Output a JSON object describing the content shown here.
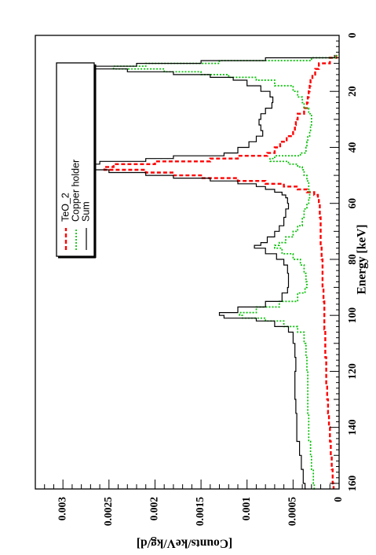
{
  "chart_data": {
    "type": "line",
    "orientation": "rotated-90-clockwise",
    "xlabel": "Energy [keV]",
    "ylabel": "[Counts/keV/kg/d]",
    "xlim": [
      0,
      162
    ],
    "ylim": [
      0,
      0.0033
    ],
    "x_ticks": [
      "0",
      "20",
      "40",
      "60",
      "80",
      "100",
      "120",
      "140",
      "160"
    ],
    "y_ticks": [
      "0",
      "0.0005",
      "0.001",
      "0.0015",
      "0.002",
      "0.0025",
      "0.003"
    ],
    "legend_position": "top-right",
    "series": [
      {
        "name": "TeO_2",
        "color": "#ff0000",
        "style": "dashed",
        "x": [
          7,
          8,
          10,
          12,
          14,
          16,
          18,
          20,
          22,
          24,
          26,
          28,
          30,
          32,
          34,
          36,
          38,
          40,
          42,
          43,
          44,
          45,
          46,
          47,
          48,
          49,
          50,
          51,
          52,
          53,
          54,
          55,
          56,
          57,
          58,
          60,
          62,
          65,
          70,
          75,
          80,
          85,
          90,
          95,
          100,
          105,
          110,
          115,
          120,
          125,
          130,
          135,
          140,
          145,
          150,
          155,
          160,
          162
        ],
        "values": [
          3e-05,
          0.0001,
          0.00022,
          0.00026,
          0.00029,
          0.00031,
          0.00032,
          0.00033,
          0.00034,
          0.00035,
          0.00038,
          0.00045,
          0.00047,
          0.00048,
          0.0005,
          0.00057,
          0.00064,
          0.0007,
          0.00078,
          0.0011,
          0.0014,
          0.002,
          0.00245,
          0.00255,
          0.0021,
          0.0018,
          0.0015,
          0.0011,
          0.0008,
          0.0006,
          0.00045,
          0.00035,
          0.00027,
          0.00023,
          0.00022,
          0.00021,
          0.00021,
          0.0002,
          0.0002,
          0.00019,
          0.00018,
          0.00018,
          0.00017,
          0.00016,
          0.00016,
          0.00015,
          0.00015,
          0.00014,
          0.00014,
          0.00013,
          0.00012,
          0.00011,
          0.0001,
          9e-05,
          8e-05,
          7e-05,
          6e-05,
          6e-05
        ]
      },
      {
        "name": "Copper holder",
        "color": "#00c000",
        "style": "dotted",
        "x": [
          7,
          8,
          9,
          10,
          11,
          12,
          13,
          14,
          15,
          16,
          18,
          20,
          22,
          24,
          26,
          28,
          30,
          32,
          34,
          36,
          38,
          40,
          42,
          43,
          44,
          45,
          46,
          47,
          48,
          50,
          52,
          55,
          58,
          60,
          62,
          65,
          68,
          70,
          72,
          74,
          75,
          76,
          78,
          80,
          82,
          85,
          88,
          90,
          92,
          95,
          97,
          99,
          100,
          101,
          102,
          104,
          106,
          110,
          115,
          120,
          125,
          130,
          135,
          140,
          145,
          150,
          155,
          160,
          162
        ],
        "values": [
          3e-05,
          0.0003,
          0.0013,
          0.0021,
          0.00245,
          0.0019,
          0.0015,
          0.0012,
          0.0009,
          0.0007,
          0.0005,
          0.00045,
          0.0004,
          0.00038,
          0.00033,
          0.0003,
          0.0003,
          0.00031,
          0.00032,
          0.00034,
          0.00035,
          0.00036,
          0.00042,
          0.0007,
          0.00075,
          0.00055,
          0.00045,
          0.0004,
          0.00038,
          0.00035,
          0.00033,
          0.00032,
          0.00033,
          0.00035,
          0.00038,
          0.0004,
          0.00045,
          0.0005,
          0.00058,
          0.00065,
          0.0007,
          0.00062,
          0.0005,
          0.00042,
          0.00038,
          0.00036,
          0.00035,
          0.00037,
          0.00045,
          0.00065,
          0.0009,
          0.00108,
          0.00105,
          0.0008,
          0.0006,
          0.00045,
          0.00038,
          0.00036,
          0.00035,
          0.00034,
          0.00034,
          0.00034,
          0.00033,
          0.00033,
          0.00031,
          0.0003,
          0.00028,
          0.00027,
          0.00026
        ]
      },
      {
        "name": "Sum",
        "color": "#000000",
        "style": "solid",
        "x": [
          7,
          8,
          9,
          10,
          11,
          12,
          13,
          14,
          15,
          16,
          18,
          20,
          22,
          24,
          26,
          28,
          30,
          32,
          34,
          36,
          38,
          40,
          42,
          43,
          44,
          45,
          46,
          47,
          48,
          49,
          50,
          51,
          52,
          53,
          54,
          55,
          56,
          57,
          58,
          60,
          62,
          65,
          68,
          70,
          72,
          74,
          75,
          76,
          78,
          80,
          82,
          85,
          88,
          90,
          92,
          95,
          97,
          99,
          100,
          101,
          102,
          104,
          106,
          110,
          115,
          120,
          125,
          130,
          135,
          140,
          145,
          150,
          155,
          160,
          162
        ],
        "values": [
          5e-05,
          0.0008,
          0.0015,
          0.0022,
          0.0027,
          0.0023,
          0.0018,
          0.0014,
          0.00115,
          0.001,
          0.00085,
          0.00075,
          0.00072,
          0.00073,
          0.0008,
          0.00085,
          0.00087,
          0.00085,
          0.00083,
          0.0009,
          0.00098,
          0.0011,
          0.00125,
          0.0018,
          0.0021,
          0.0026,
          0.003,
          0.0029,
          0.0025,
          0.0021,
          0.0018,
          0.0014,
          0.0011,
          0.0009,
          0.0008,
          0.0007,
          0.00062,
          0.00058,
          0.00056,
          0.00055,
          0.00058,
          0.0006,
          0.00065,
          0.0007,
          0.00078,
          0.00085,
          0.00092,
          0.0008,
          0.00068,
          0.0006,
          0.00056,
          0.00055,
          0.00055,
          0.00056,
          0.00062,
          0.0008,
          0.0011,
          0.0013,
          0.00125,
          0.0009,
          0.0007,
          0.00055,
          0.0005,
          0.00048,
          0.00047,
          0.00048,
          0.00048,
          0.00047,
          0.00046,
          0.00046,
          0.00043,
          0.00041,
          0.00039,
          0.00037,
          0.00036
        ]
      }
    ]
  }
}
